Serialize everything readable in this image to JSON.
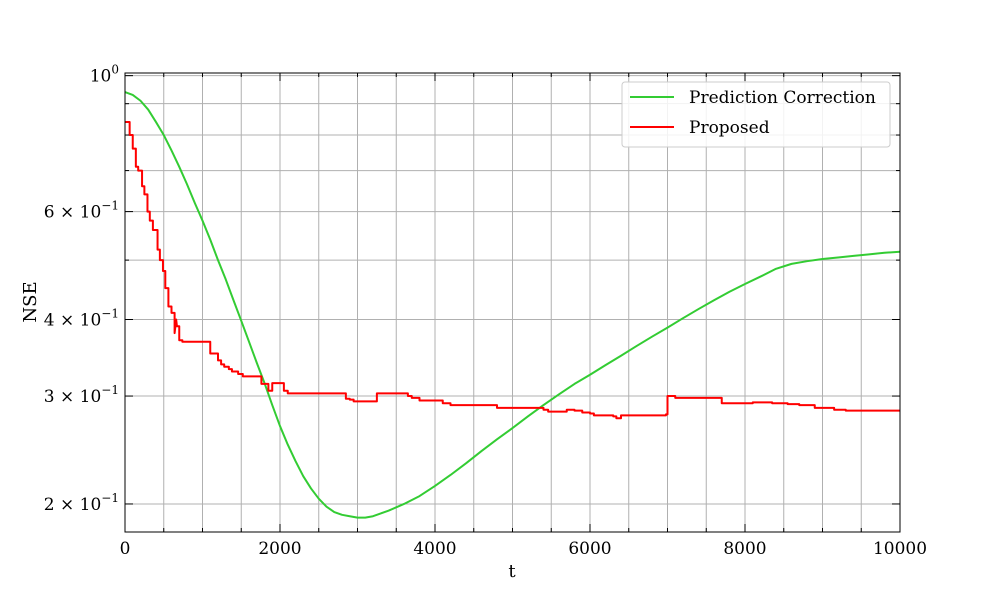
{
  "chart_data": {
    "type": "line",
    "xlabel": "t",
    "ylabel": "NSE",
    "xlim": [
      0,
      10000
    ],
    "ylim": [
      0.18,
      1.01
    ],
    "yscale": "log",
    "grid": true,
    "legend_position": "top-right",
    "x_ticks": [
      {
        "value": 0,
        "label": "0"
      },
      {
        "value": 2000,
        "label": "2000"
      },
      {
        "value": 4000,
        "label": "4000"
      },
      {
        "value": 6000,
        "label": "6000"
      },
      {
        "value": 8000,
        "label": "8000"
      },
      {
        "value": 10000,
        "label": "10000"
      }
    ],
    "x_minor_ticks": [
      500,
      1000,
      1500,
      2500,
      3000,
      3500,
      4500,
      5000,
      5500,
      6500,
      7000,
      7500,
      8500,
      9000,
      9500
    ],
    "y_ticks": [
      {
        "value": 1.0,
        "base": "10",
        "exp": "0"
      },
      {
        "value": 0.6,
        "base": "6 × 10",
        "exp": "−1"
      },
      {
        "value": 0.4,
        "base": "4 × 10",
        "exp": "−1"
      },
      {
        "value": 0.3,
        "base": "3 × 10",
        "exp": "−1"
      },
      {
        "value": 0.2,
        "base": "2 × 10",
        "exp": "−1"
      }
    ],
    "y_minor_ticks": [
      0.9,
      0.8,
      0.7,
      0.5
    ],
    "series": [
      {
        "name": "Prediction Correction",
        "color": "#33cc33",
        "x": [
          0,
          100,
          200,
          300,
          400,
          500,
          600,
          700,
          800,
          900,
          1000,
          1100,
          1200,
          1300,
          1400,
          1500,
          1600,
          1700,
          1800,
          1900,
          2000,
          2100,
          2200,
          2300,
          2400,
          2500,
          2600,
          2700,
          2800,
          2900,
          3000,
          3100,
          3200,
          3300,
          3400,
          3600,
          3800,
          4000,
          4200,
          4400,
          4600,
          4800,
          5000,
          5200,
          5400,
          5600,
          5800,
          6000,
          6200,
          6400,
          6600,
          6800,
          7000,
          7200,
          7400,
          7600,
          7800,
          8000,
          8200,
          8400,
          8600,
          8800,
          9000,
          9200,
          9400,
          9600,
          9800,
          10000
        ],
        "y": [
          0.94,
          0.93,
          0.91,
          0.88,
          0.84,
          0.8,
          0.755,
          0.71,
          0.665,
          0.62,
          0.58,
          0.54,
          0.5,
          0.465,
          0.43,
          0.398,
          0.368,
          0.34,
          0.315,
          0.29,
          0.268,
          0.25,
          0.235,
          0.222,
          0.212,
          0.204,
          0.198,
          0.194,
          0.192,
          0.191,
          0.19,
          0.19,
          0.191,
          0.193,
          0.195,
          0.2,
          0.206,
          0.214,
          0.223,
          0.233,
          0.244,
          0.255,
          0.266,
          0.278,
          0.29,
          0.302,
          0.314,
          0.325,
          0.337,
          0.349,
          0.362,
          0.375,
          0.388,
          0.402,
          0.416,
          0.43,
          0.444,
          0.457,
          0.47,
          0.484,
          0.493,
          0.498,
          0.502,
          0.505,
          0.508,
          0.511,
          0.514,
          0.516
        ]
      },
      {
        "name": "Proposed",
        "color": "#ff0000",
        "x": [
          0,
          60,
          60,
          100,
          100,
          140,
          140,
          170,
          170,
          220,
          220,
          250,
          250,
          290,
          290,
          320,
          320,
          360,
          360,
          420,
          420,
          450,
          450,
          490,
          490,
          520,
          520,
          560,
          560,
          600,
          600,
          640,
          640,
          660,
          670,
          700,
          700,
          740,
          740,
          1100,
          1100,
          1200,
          1200,
          1240,
          1240,
          1280,
          1280,
          1340,
          1340,
          1380,
          1380,
          1460,
          1460,
          1520,
          1520,
          1760,
          1760,
          1850,
          1850,
          1900,
          1900,
          2050,
          2050,
          2100,
          2100,
          2850,
          2850,
          2900,
          2900,
          2950,
          2950,
          3250,
          3250,
          3650,
          3650,
          3700,
          3700,
          3800,
          3800,
          4100,
          4100,
          4200,
          4200,
          4800,
          4800,
          5400,
          5400,
          5460,
          5460,
          5700,
          5700,
          5800,
          5800,
          5900,
          5900,
          6000,
          6000,
          6050,
          6050,
          6300,
          6300,
          6340,
          6340,
          6400,
          6400,
          6980,
          6980,
          7000,
          7000,
          7100,
          7100,
          7700,
          7700,
          8100,
          8100,
          8350,
          8350,
          8550,
          8550,
          8700,
          8700,
          8900,
          8900,
          9150,
          9150,
          9300,
          9300,
          10000
        ],
        "y": [
          0.84,
          0.84,
          0.8,
          0.8,
          0.76,
          0.76,
          0.71,
          0.71,
          0.7,
          0.7,
          0.66,
          0.66,
          0.64,
          0.64,
          0.6,
          0.6,
          0.58,
          0.58,
          0.56,
          0.56,
          0.52,
          0.52,
          0.5,
          0.5,
          0.48,
          0.48,
          0.45,
          0.45,
          0.42,
          0.42,
          0.41,
          0.41,
          0.38,
          0.4,
          0.39,
          0.39,
          0.37,
          0.37,
          0.368,
          0.368,
          0.352,
          0.352,
          0.343,
          0.343,
          0.338,
          0.338,
          0.335,
          0.335,
          0.332,
          0.332,
          0.329,
          0.329,
          0.326,
          0.326,
          0.323,
          0.323,
          0.314,
          0.314,
          0.306,
          0.306,
          0.315,
          0.315,
          0.306,
          0.306,
          0.303,
          0.303,
          0.297,
          0.297,
          0.296,
          0.296,
          0.294,
          0.294,
          0.303,
          0.303,
          0.3,
          0.3,
          0.298,
          0.298,
          0.295,
          0.295,
          0.292,
          0.292,
          0.29,
          0.29,
          0.287,
          0.287,
          0.285,
          0.285,
          0.283,
          0.283,
          0.285,
          0.285,
          0.284,
          0.284,
          0.282,
          0.282,
          0.281,
          0.281,
          0.279,
          0.279,
          0.278,
          0.278,
          0.276,
          0.276,
          0.279,
          0.279,
          0.28,
          0.28,
          0.3,
          0.3,
          0.298,
          0.298,
          0.292,
          0.292,
          0.293,
          0.293,
          0.292,
          0.292,
          0.291,
          0.291,
          0.29,
          0.29,
          0.287,
          0.287,
          0.285,
          0.285,
          0.284,
          0.284
        ]
      }
    ]
  }
}
